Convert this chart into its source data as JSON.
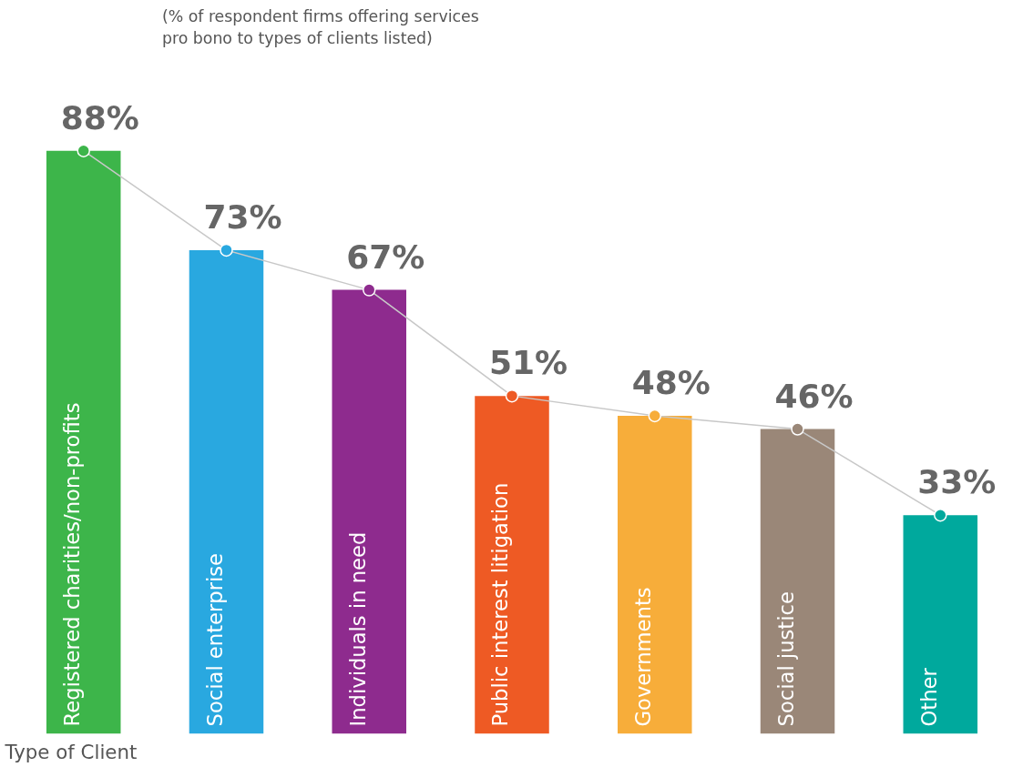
{
  "chart_data": {
    "type": "bar",
    "subtitle": "(% of respondent firms offering services\npro bono to types of clients listed)",
    "xlabel": "Type of Client",
    "categories": [
      "Registered charities/non-profits",
      "Social enterprise",
      "Individuals in need",
      "Public interest litigation",
      "Governments",
      "Social justice",
      "Other"
    ],
    "tick_labels": "x",
    "series": [
      {
        "values": [
          88,
          73,
          67,
          51,
          48,
          46,
          33
        ],
        "value_labels": [
          "88%",
          "73%",
          "67%",
          "51%",
          "48%",
          "46%",
          "33%"
        ],
        "colors": [
          "#3db54a",
          "#29a8e0",
          "#8e2b8e",
          "#ee5a24",
          "#f7ad3a",
          "#9a8778",
          "#00a99d"
        ]
      },
      {
        "type": "line",
        "marker": "circle",
        "color": "#c8c8c8",
        "values": [
          88,
          73,
          67,
          51,
          48,
          46,
          33
        ],
        "colors": [
          "#3db54a",
          "#29a8e0",
          "#8e2b8e",
          "#ee5a24",
          "#f7ad3a",
          "#9a8778",
          "#00a99d"
        ]
      }
    ]
  }
}
